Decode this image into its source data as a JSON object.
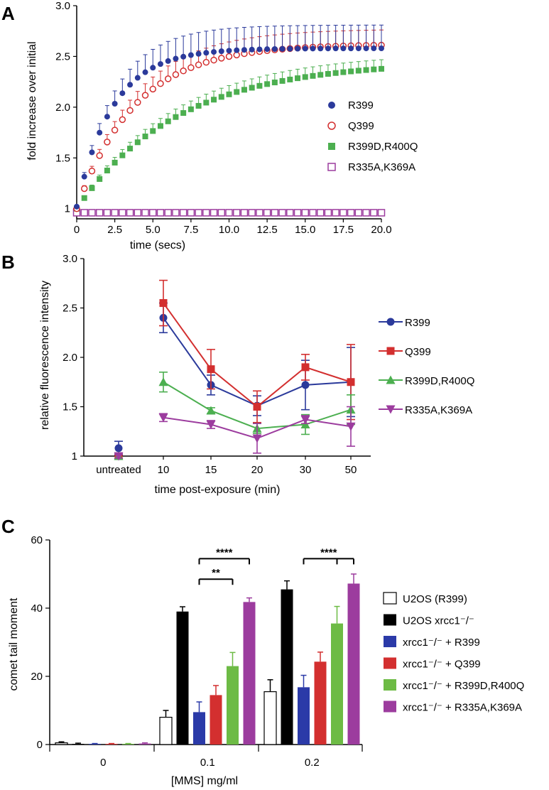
{
  "panels": {
    "a": {
      "letter": "A"
    },
    "b": {
      "letter": "B"
    },
    "c": {
      "letter": "C"
    }
  },
  "chart_data": [
    {
      "panel": "A",
      "type": "scatter",
      "xlabel": "time (secs)",
      "ylabel": "fold increase over initial",
      "xlim": [
        0,
        20
      ],
      "ylim": [
        0.9,
        3.0
      ],
      "xticks": [
        "0",
        "2.5",
        "5.0",
        "7.5",
        "10.0",
        "12.5",
        "15.0",
        "17.5",
        "20.0"
      ],
      "yticks": [
        "1",
        "1.5",
        "2.0",
        "2.5",
        "3.0"
      ],
      "legend_position": "right",
      "series": [
        {
          "name": "R399",
          "color": "#2b3a9b",
          "marker": "filled-circle",
          "plateau": 2.58,
          "rate": 0.42,
          "start": 1.02,
          "err": 0.22
        },
        {
          "name": "Q399",
          "color": "#d32f2f",
          "marker": "open-circle",
          "plateau": 2.62,
          "rate": 0.26,
          "start": 1.0,
          "err": 0.14
        },
        {
          "name": "R399D,R400Q",
          "color": "#4caf50",
          "marker": "filled-square",
          "plateau": 2.45,
          "rate": 0.15,
          "start": 1.0,
          "err": 0.08
        },
        {
          "name": "R335A,K369A",
          "color": "#9c3c9e",
          "marker": "open-square",
          "plateau": 0.98,
          "rate": 0.0,
          "start": 0.96,
          "err": 0.02
        }
      ]
    },
    {
      "panel": "B",
      "type": "line",
      "xlabel": "time post-exposure (min)",
      "ylabel": "relative fluorescence intensity",
      "ylim": [
        1.0,
        3.0
      ],
      "categories": [
        "untreated",
        "10",
        "15",
        "20",
        "30",
        "50"
      ],
      "yticks": [
        "1",
        "1.5",
        "2.0",
        "2.5",
        "3.0"
      ],
      "legend_position": "right",
      "series": [
        {
          "name": "R399",
          "color": "#2b3a9b",
          "marker": "circle",
          "values": [
            1.08,
            2.4,
            1.72,
            1.51,
            1.72,
            1.75
          ],
          "errors": [
            0.07,
            0.15,
            0.1,
            0.1,
            0.25,
            0.35
          ]
        },
        {
          "name": "Q399",
          "color": "#d32f2f",
          "marker": "square",
          "values": [
            1.0,
            2.55,
            1.88,
            1.5,
            1.9,
            1.75
          ],
          "errors": [
            0.03,
            0.23,
            0.2,
            0.16,
            0.13,
            0.38
          ]
        },
        {
          "name": "R399D,R400Q",
          "color": "#4caf50",
          "marker": "triangle-up",
          "values": [
            1.0,
            1.75,
            1.46,
            1.28,
            1.32,
            1.47
          ],
          "errors": [
            0.03,
            0.1,
            0.03,
            0.05,
            0.1,
            0.15
          ]
        },
        {
          "name": "R335A,K369A",
          "color": "#9c3c9e",
          "marker": "triangle-down",
          "values": [
            1.0,
            1.39,
            1.32,
            1.18,
            1.37,
            1.3
          ],
          "errors": [
            0.02,
            0.04,
            0.04,
            0.15,
            0.04,
            0.2
          ]
        }
      ]
    },
    {
      "panel": "C",
      "type": "bar",
      "xlabel": "[MMS] mg/ml",
      "ylabel": "comet tail moment",
      "ylim": [
        0,
        60
      ],
      "yticks": [
        "0",
        "20",
        "40",
        "60"
      ],
      "categories": [
        "0",
        "0.1",
        "0.2"
      ],
      "legend_position": "right",
      "series": [
        {
          "name": "U2OS (R399)",
          "fill": "#ffffff",
          "values": [
            0.5,
            8.0,
            15.5
          ],
          "errors": [
            0.3,
            2.0,
            3.5
          ]
        },
        {
          "name": "U2OS xrcc1⁻/⁻",
          "fill": "#000000",
          "values": [
            0.2,
            39.0,
            45.5
          ],
          "errors": [
            0.2,
            1.4,
            2.5
          ]
        },
        {
          "name": "xrcc1⁻/⁻ + R399",
          "fill": "#2b3aa8",
          "values": [
            0.2,
            9.5,
            16.8
          ],
          "errors": [
            0.1,
            3.0,
            3.5
          ]
        },
        {
          "name": "xrcc1⁻/⁻ + Q399",
          "fill": "#d32f2f",
          "values": [
            0.2,
            14.5,
            24.3
          ],
          "errors": [
            0.1,
            2.8,
            2.8
          ]
        },
        {
          "name": "xrcc1⁻/⁻ + R399D,R400Q",
          "fill": "#6dbb45",
          "values": [
            0.2,
            23.0,
            35.5
          ],
          "errors": [
            0.1,
            4.0,
            5.0
          ]
        },
        {
          "name": "xrcc1⁻/⁻ + R335A,K369A",
          "fill": "#9c3c9e",
          "values": [
            0.3,
            41.8,
            47.2
          ],
          "errors": [
            0.2,
            1.2,
            2.8
          ]
        }
      ],
      "annotations": [
        {
          "label": "****",
          "category": "0.1",
          "from": 2,
          "to": 5,
          "level": 54.5
        },
        {
          "label": "**",
          "category": "0.1",
          "from": 2,
          "to": 4,
          "level": 48.5
        },
        {
          "label": "****",
          "category": "0.2",
          "from": 2,
          "to": [
            4,
            5
          ],
          "level": 54.5
        }
      ]
    }
  ]
}
